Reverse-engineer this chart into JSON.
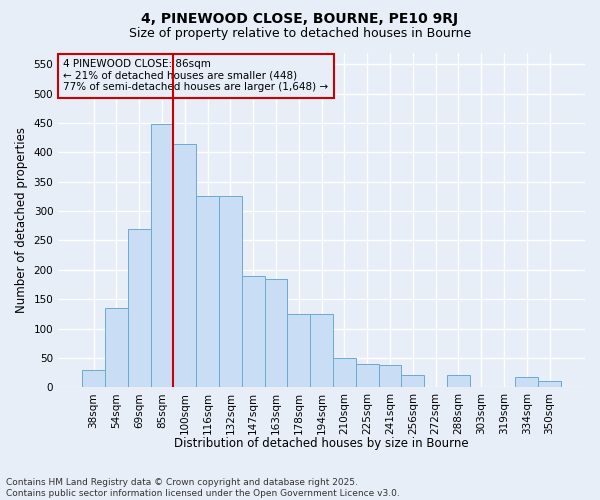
{
  "title": "4, PINEWOOD CLOSE, BOURNE, PE10 9RJ",
  "subtitle": "Size of property relative to detached houses in Bourne",
  "xlabel": "Distribution of detached houses by size in Bourne",
  "ylabel": "Number of detached properties",
  "categories": [
    "38sqm",
    "54sqm",
    "69sqm",
    "85sqm",
    "100sqm",
    "116sqm",
    "132sqm",
    "147sqm",
    "163sqm",
    "178sqm",
    "194sqm",
    "210sqm",
    "225sqm",
    "241sqm",
    "256sqm",
    "272sqm",
    "288sqm",
    "303sqm",
    "319sqm",
    "334sqm",
    "350sqm"
  ],
  "values": [
    30,
    135,
    270,
    448,
    415,
    325,
    325,
    190,
    185,
    125,
    125,
    50,
    40,
    38,
    20,
    0,
    20,
    0,
    0,
    18,
    10
  ],
  "bar_color": "#c9ddf5",
  "bar_edge_color": "#6aaad4",
  "vline_color": "#cc0000",
  "vline_index": 3.5,
  "annotation_text": "4 PINEWOOD CLOSE: 86sqm\n← 21% of detached houses are smaller (448)\n77% of semi-detached houses are larger (1,648) →",
  "annotation_box_color": "#cc0000",
  "ylim": [
    0,
    570
  ],
  "yticks": [
    0,
    50,
    100,
    150,
    200,
    250,
    300,
    350,
    400,
    450,
    500,
    550
  ],
  "footnote": "Contains HM Land Registry data © Crown copyright and database right 2025.\nContains public sector information licensed under the Open Government Licence v3.0.",
  "background_color": "#e8eef8",
  "grid_color": "#ffffff",
  "title_fontsize": 10,
  "subtitle_fontsize": 9,
  "axis_label_fontsize": 8.5,
  "tick_fontsize": 7.5,
  "annotation_fontsize": 7.5,
  "footnote_fontsize": 6.5
}
